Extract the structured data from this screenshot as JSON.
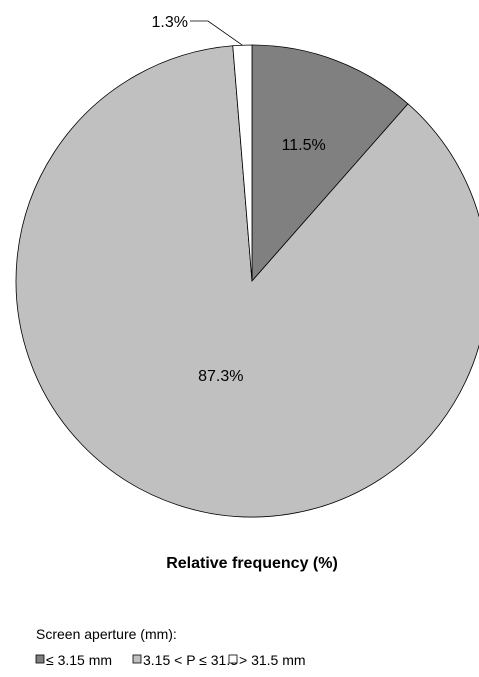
{
  "chart_data": {
    "type": "pie",
    "title": "Relative frequency (%)",
    "legend_title": "Screen aperture (mm):",
    "legend_position": "bottom",
    "series": [
      {
        "name": "≤ 3.15 mm",
        "value": 11.5,
        "label": "11.5%",
        "color": "#808080"
      },
      {
        "name": "3.15 < P ≤ 31.5",
        "value": 87.3,
        "label": "87.3%",
        "color": "#c0c0c0"
      },
      {
        "name": "> 31.5 mm",
        "value": 1.3,
        "label": "1.3%",
        "color": "#ffffff"
      }
    ]
  }
}
